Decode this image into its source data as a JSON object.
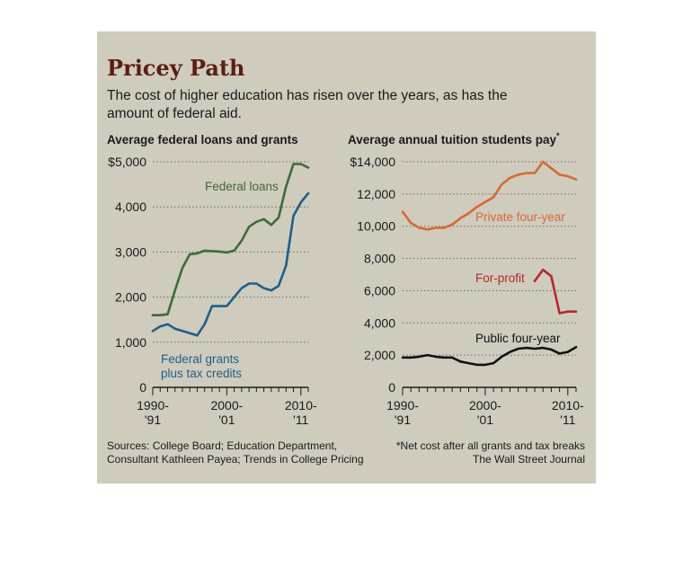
{
  "header": {
    "title": "Pricey Path",
    "subtitle_line1": "The cost of higher education has risen over the years, as has the",
    "subtitle_line2": "amount of federal aid."
  },
  "footer": {
    "sources_line1": "Sources: College Board; Education Department,",
    "sources_line2": "Consultant Kathleen Payea; Trends in College Pricing",
    "note": "*Net cost after all grants and tax breaks",
    "credit": "The Wall Street Journal"
  },
  "colors": {
    "panel_bg": "#cfcbbd",
    "title": "#5a1e12",
    "federal_loans": "#3d6b3a",
    "federal_grants": "#1f5f8a",
    "private_four_year": "#d46a32",
    "for_profit": "#b22a2a",
    "public_four_year": "#111111"
  },
  "chart_data": [
    {
      "type": "line",
      "title": "Average federal loans and grants",
      "ylim": [
        0,
        5000
      ],
      "xlim": [
        1990,
        2011
      ],
      "y_ticks": [
        {
          "value": 5000,
          "label": "$5,000"
        },
        {
          "value": 4000,
          "label": "4,000"
        },
        {
          "value": 3000,
          "label": "3,000"
        },
        {
          "value": 2000,
          "label": "2,000"
        },
        {
          "value": 1000,
          "label": "1,000"
        },
        {
          "value": 0,
          "label": "0"
        }
      ],
      "x_ticks": [
        {
          "value": 1990,
          "line1": "1990-",
          "line2": "'91"
        },
        {
          "value": 2000,
          "line1": "2000-",
          "line2": "'01"
        },
        {
          "value": 2010,
          "line1": "2010-",
          "line2": "'11"
        }
      ],
      "grid": true,
      "series": [
        {
          "name": "Federal loans",
          "color": "#3d6b3a",
          "x": [
            1990,
            1991,
            1992,
            1993,
            1994,
            1995,
            1996,
            1997,
            1998,
            1999,
            2000,
            2001,
            2002,
            2003,
            2004,
            2005,
            2006,
            2007,
            2008,
            2009,
            2010,
            2011
          ],
          "y": [
            1600,
            1600,
            1620,
            2150,
            2650,
            2950,
            2970,
            3030,
            3020,
            3010,
            2990,
            3030,
            3250,
            3560,
            3670,
            3730,
            3600,
            3760,
            4450,
            4950,
            4950,
            4870
          ]
        },
        {
          "name": "Federal grants plus tax credits",
          "color": "#1f5f8a",
          "x": [
            1990,
            1991,
            1992,
            1993,
            1994,
            1995,
            1996,
            1997,
            1998,
            1999,
            2000,
            2001,
            2002,
            2003,
            2004,
            2005,
            2006,
            2007,
            2008,
            2009,
            2010,
            2011
          ],
          "y": [
            1250,
            1350,
            1400,
            1300,
            1250,
            1200,
            1150,
            1400,
            1800,
            1800,
            1800,
            2000,
            2200,
            2300,
            2300,
            2200,
            2150,
            2250,
            2700,
            3800,
            4100,
            4300
          ]
        }
      ]
    },
    {
      "type": "line",
      "title": "Average annual tuition students pay",
      "title_mark": "*",
      "ylim": [
        0,
        14000
      ],
      "xlim": [
        1990,
        2011
      ],
      "y_ticks": [
        {
          "value": 14000,
          "label": "$14,000"
        },
        {
          "value": 12000,
          "label": "12,000"
        },
        {
          "value": 10000,
          "label": "10,000"
        },
        {
          "value": 8000,
          "label": "8,000"
        },
        {
          "value": 6000,
          "label": "6,000"
        },
        {
          "value": 4000,
          "label": "4,000"
        },
        {
          "value": 2000,
          "label": "2,000"
        },
        {
          "value": 0,
          "label": "0"
        }
      ],
      "x_ticks": [
        {
          "value": 1990,
          "line1": "1990-",
          "line2": "'91"
        },
        {
          "value": 2000,
          "line1": "2000-",
          "line2": "'01"
        },
        {
          "value": 2010,
          "line1": "2010-",
          "line2": "'11"
        }
      ],
      "grid": true,
      "series": [
        {
          "name": "Private four-year",
          "color": "#d46a32",
          "x": [
            1990,
            1991,
            1992,
            1993,
            1994,
            1995,
            1996,
            1997,
            1998,
            1999,
            2000,
            2001,
            2002,
            2003,
            2004,
            2005,
            2006,
            2007,
            2008,
            2009,
            2010,
            2011
          ],
          "y": [
            10900,
            10200,
            9900,
            9800,
            9900,
            9900,
            10100,
            10500,
            10800,
            11200,
            11500,
            11800,
            12600,
            13000,
            13200,
            13300,
            13300,
            14000,
            13600,
            13200,
            13100,
            12900
          ]
        },
        {
          "name": "For-profit",
          "color": "#b22a2a",
          "x": [
            2006,
            2007,
            2008,
            2009,
            2010,
            2011
          ],
          "y": [
            6600,
            7300,
            6900,
            4600,
            4700,
            4700
          ]
        },
        {
          "name": "Public four-year",
          "color": "#111111",
          "x": [
            1990,
            1991,
            1992,
            1993,
            1994,
            1995,
            1996,
            1997,
            1998,
            1999,
            2000,
            2001,
            2002,
            2003,
            2004,
            2005,
            2006,
            2007,
            2008,
            2009,
            2010,
            2011
          ],
          "y": [
            1850,
            1850,
            1900,
            2000,
            1900,
            1850,
            1850,
            1600,
            1500,
            1400,
            1400,
            1500,
            1900,
            2200,
            2400,
            2450,
            2400,
            2450,
            2350,
            2100,
            2200,
            2500
          ]
        }
      ]
    }
  ]
}
